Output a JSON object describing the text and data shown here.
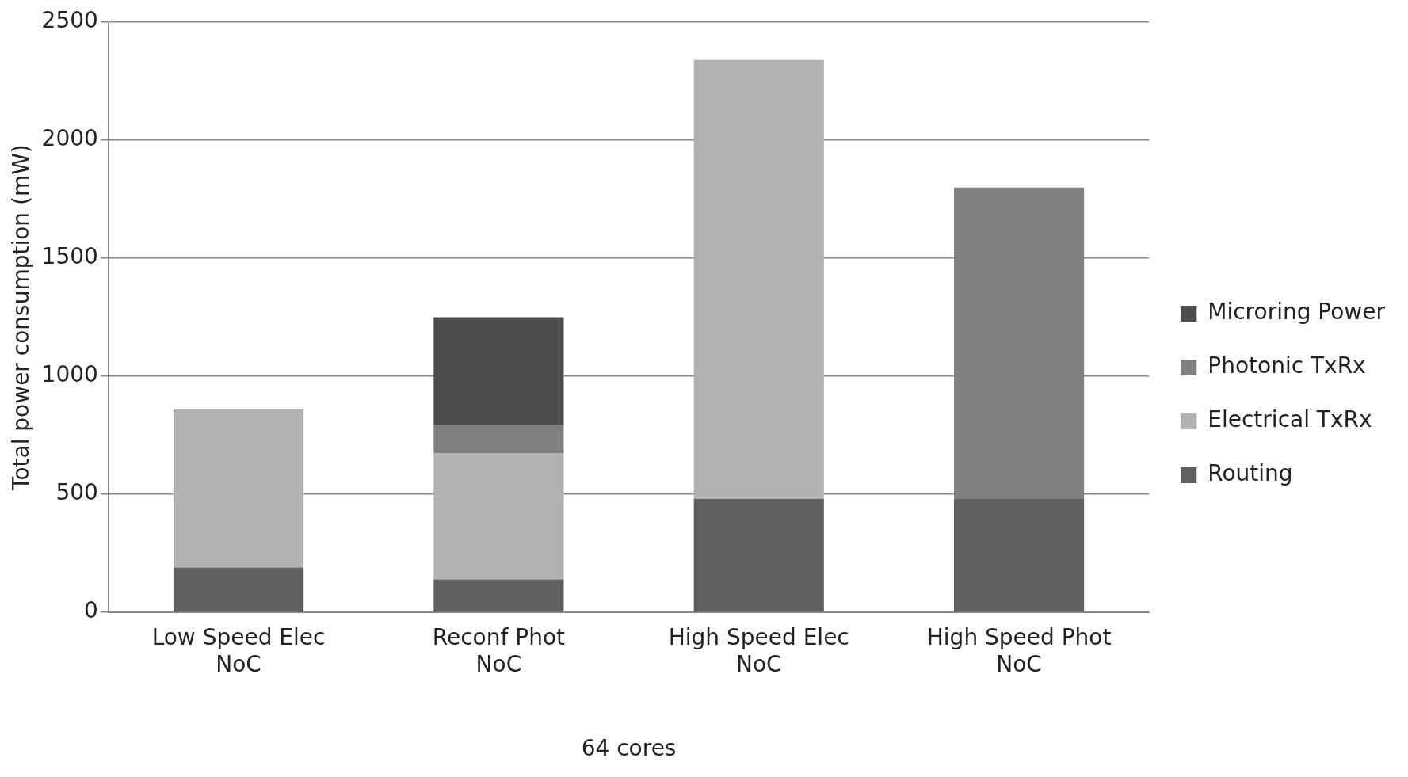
{
  "chart_data": {
    "type": "bar",
    "stacked": true,
    "xlabel": "64 cores",
    "ylabel": "Total power consumption (mW)",
    "categories": [
      "Low Speed Elec NoC",
      "Reconf Phot NoC",
      "High Speed Elec NoC",
      "High Speed Phot NoC"
    ],
    "series": [
      {
        "name": "Routing",
        "color": "#606060",
        "values": [
          190,
          140,
          480,
          480
        ]
      },
      {
        "name": "Electrical TxRx",
        "color": "#b2b2b2",
        "values": [
          670,
          535,
          1860,
          0
        ]
      },
      {
        "name": "Photonic TxRx",
        "color": "#808080",
        "values": [
          0,
          120,
          0,
          1320
        ]
      },
      {
        "name": "Microring Power",
        "color": "#4d4d4d",
        "values": [
          0,
          455,
          0,
          0
        ]
      }
    ],
    "ylim": [
      0,
      2500
    ],
    "yticks": [
      0,
      500,
      1000,
      1500,
      2000,
      2500
    ],
    "grid": "y",
    "legend": "right"
  }
}
